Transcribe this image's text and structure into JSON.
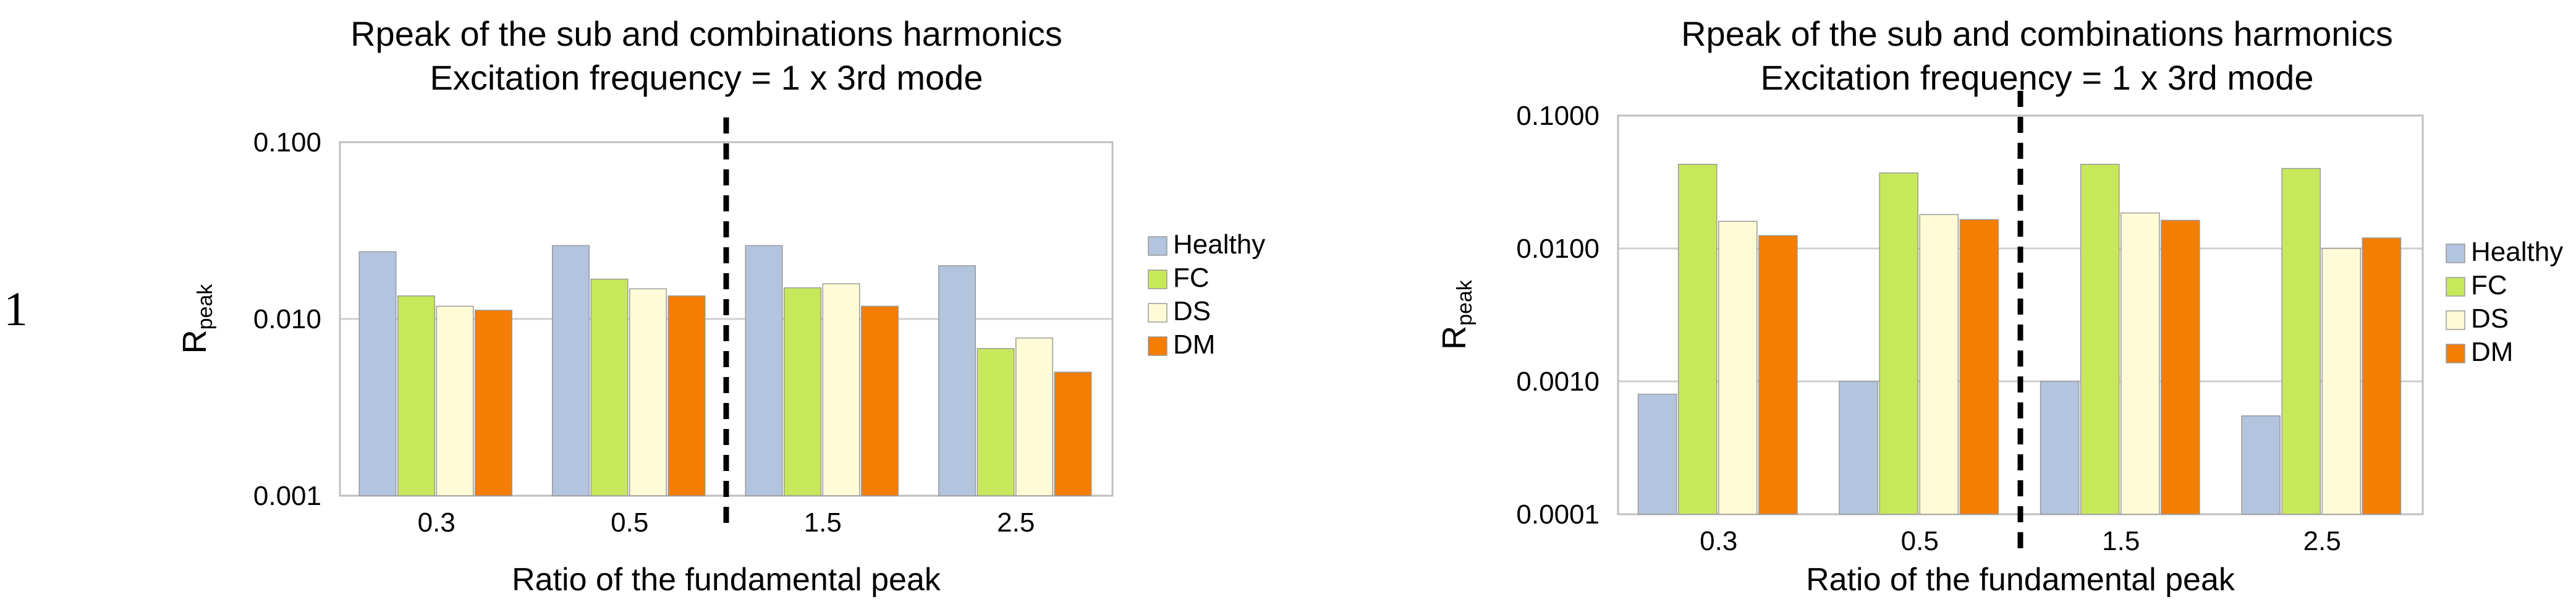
{
  "figure": {
    "row_label": "1"
  },
  "chart_data": [
    {
      "type": "bar",
      "title": "Rpeak of the sub and combinations harmonics",
      "subtitle": "Excitation frequency = 1 x 3rd mode",
      "xlabel": "Ratio of the fundamental peak",
      "ylabel_main": "R",
      "ylabel_sub": "peak",
      "yscale": "log",
      "ylim": [
        0.001,
        0.1
      ],
      "yticks": [
        0.001,
        0.01,
        0.1
      ],
      "ytick_labels": [
        "0.001",
        "0.010",
        "0.100"
      ],
      "categories": [
        "0.3",
        "0.5",
        "1.5",
        "2.5"
      ],
      "divider_after_category": 2,
      "grid": true,
      "legend_position": "right",
      "series": [
        {
          "name": "Healthy",
          "color": "#b2c4de",
          "values": [
            0.024,
            0.026,
            0.026,
            0.02
          ]
        },
        {
          "name": "FC",
          "color": "#c8e85c",
          "values": [
            0.0135,
            0.0168,
            0.015,
            0.0068
          ]
        },
        {
          "name": "DS",
          "color": "#fffbd6",
          "values": [
            0.0118,
            0.0148,
            0.0158,
            0.0078
          ]
        },
        {
          "name": "DM",
          "color": "#f57d00",
          "values": [
            0.0112,
            0.0135,
            0.0118,
            0.005
          ]
        }
      ]
    },
    {
      "type": "bar",
      "title": "Rpeak of the sub and combinations harmonics",
      "subtitle": "Excitation frequency = 1 x 3rd mode",
      "xlabel": "Ratio of the fundamental peak",
      "ylabel_main": "R",
      "ylabel_sub": "peak",
      "yscale": "log",
      "ylim": [
        0.0001,
        0.1
      ],
      "yticks": [
        0.0001,
        0.001,
        0.01,
        0.1
      ],
      "ytick_labels": [
        "0.0001",
        "0.0010",
        "0.0100",
        "0.1000"
      ],
      "categories": [
        "0.3",
        "0.5",
        "1.5",
        "2.5"
      ],
      "divider_after_category": 2,
      "grid": true,
      "legend_position": "right",
      "series": [
        {
          "name": "Healthy",
          "color": "#b2c4de",
          "values": [
            0.0008,
            0.001,
            0.001,
            0.00055
          ]
        },
        {
          "name": "FC",
          "color": "#c8e85c",
          "values": [
            0.043,
            0.037,
            0.043,
            0.04
          ]
        },
        {
          "name": "DS",
          "color": "#fffbd6",
          "values": [
            0.016,
            0.018,
            0.0185,
            0.01
          ]
        },
        {
          "name": "DM",
          "color": "#f57d00",
          "values": [
            0.0125,
            0.0165,
            0.0163,
            0.012
          ]
        }
      ]
    }
  ]
}
